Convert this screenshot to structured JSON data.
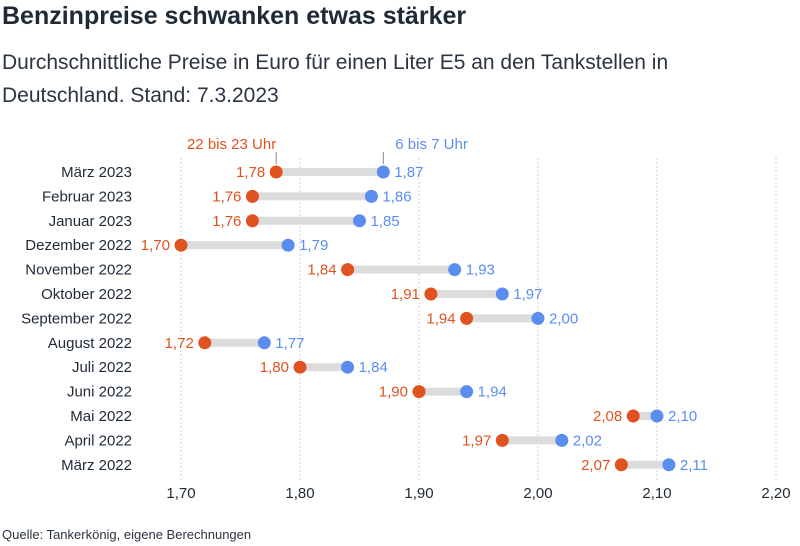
{
  "title": "Benzinpreise schwanken etwas stärker",
  "subtitle": "Durchschnittliche Preise in Euro für einen Liter E5 an den Tankstellen in Deutschland. Stand: 7.3.2023",
  "source": "Quelle: Tankerkönig, eigene Berechnungen",
  "colors": {
    "evening": "#e0521f",
    "morning": "#5b8def",
    "bar": "#dcdcdc",
    "grid": "#d4d4d4"
  },
  "chart_data": {
    "type": "dumbbell",
    "categories": [
      "März 2023",
      "Februar 2023",
      "Januar 2023",
      "Dezember 2022",
      "November 2022",
      "Oktober 2022",
      "September 2022",
      "August 2022",
      "Juli 2022",
      "Juni 2022",
      "Mai 2022",
      "April 2022",
      "März 2022"
    ],
    "series": [
      {
        "name": "22 bis 23 Uhr",
        "values": [
          1.78,
          1.76,
          1.76,
          1.7,
          1.84,
          1.91,
          1.94,
          1.72,
          1.8,
          1.9,
          2.08,
          1.97,
          2.07
        ],
        "labels": [
          "1,78",
          "1,76",
          "1,76",
          "1,70",
          "1,84",
          "1,91",
          "1,94",
          "1,72",
          "1,80",
          "1,90",
          "2,08",
          "1,97",
          "2,07"
        ]
      },
      {
        "name": "6 bis 7 Uhr",
        "values": [
          1.87,
          1.86,
          1.85,
          1.79,
          1.93,
          1.97,
          2.0,
          1.77,
          1.84,
          1.94,
          2.1,
          2.02,
          2.11
        ],
        "labels": [
          "1,87",
          "1,86",
          "1,85",
          "1,79",
          "1,93",
          "1,97",
          "2,00",
          "1,77",
          "1,84",
          "1,94",
          "2,10",
          "2,02",
          "2,11"
        ]
      }
    ],
    "xlim": [
      1.7,
      2.2
    ],
    "xticks": [
      1.7,
      1.8,
      1.9,
      2.0,
      2.1,
      2.2
    ],
    "xtick_labels": [
      "1,70",
      "1,80",
      "1,90",
      "2,00",
      "2,10",
      "2,20"
    ],
    "grid": true
  }
}
